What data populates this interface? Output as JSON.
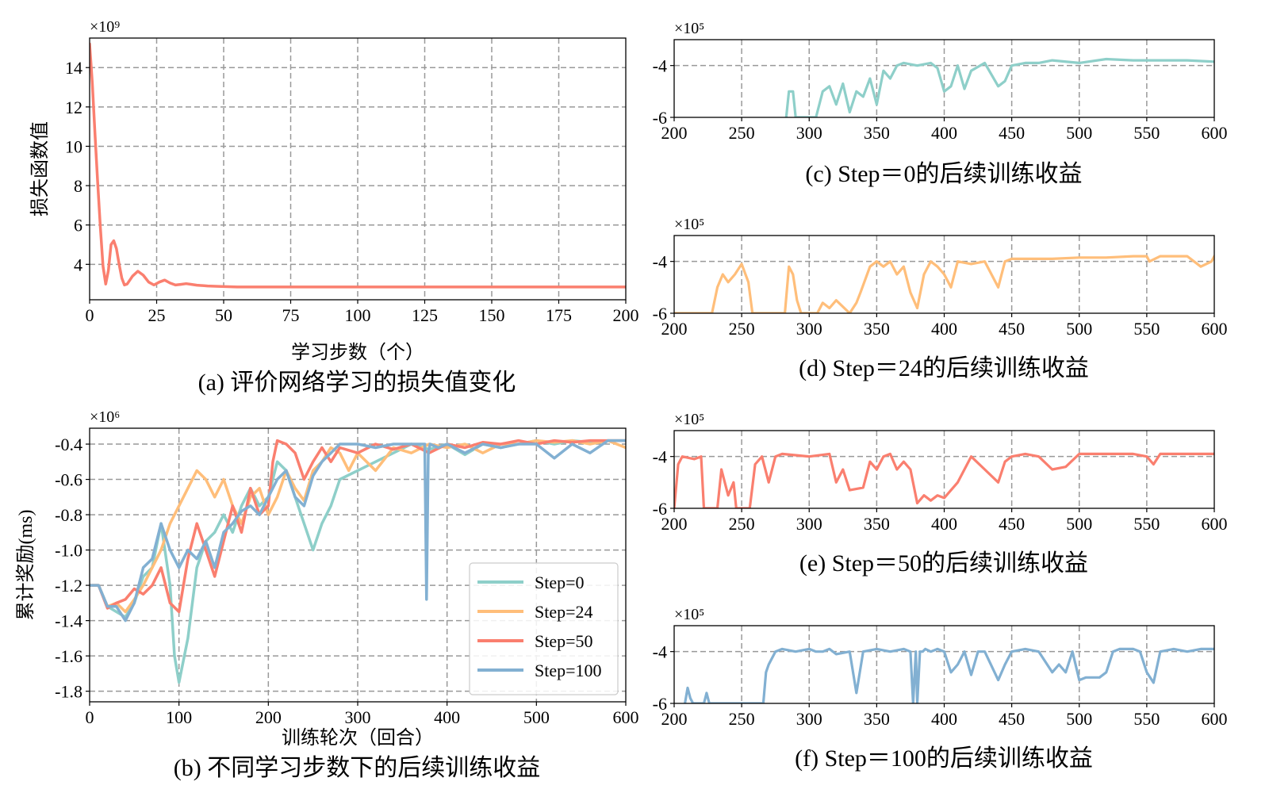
{
  "figure": {
    "panels": [
      {
        "id": "a",
        "caption": "(a)  评价网络学习的损失值变化"
      },
      {
        "id": "b",
        "caption": "(b)  不同学习步数下的后续训练收益"
      },
      {
        "id": "c",
        "caption": "(c)  Step＝0的后续训练收益"
      },
      {
        "id": "d",
        "caption": "(d)  Step＝24的后续训练收益"
      },
      {
        "id": "e",
        "caption": "(e)  Step＝50的后续训练收益"
      },
      {
        "id": "f",
        "caption": "(f)  Step＝100的后续训练收益"
      }
    ]
  },
  "colors": {
    "step0": "#8ecfc9",
    "step24": "#ffbe7a",
    "step50": "#fa7f6f",
    "step100": "#82b0d2",
    "grid": "#999999"
  },
  "chart_data": [
    {
      "id": "a",
      "type": "line",
      "title": "",
      "xlabel": "学习步数（个）",
      "ylabel": "损失函数值",
      "y_multiplier": "×10⁹",
      "xlim": [
        0,
        200
      ],
      "ylim": [
        2.2,
        15.5
      ],
      "xticks": [
        0,
        25,
        50,
        75,
        100,
        125,
        150,
        175,
        200
      ],
      "yticks": [
        4,
        6,
        8,
        10,
        12,
        14
      ],
      "grid": true,
      "series": [
        {
          "color": "#fa7f6f",
          "x": [
            0,
            1,
            2,
            3,
            4,
            5,
            6,
            7,
            8,
            9,
            10,
            11,
            12,
            13,
            14,
            16,
            18,
            20,
            22,
            24,
            26,
            28,
            30,
            32,
            34,
            36,
            38,
            40,
            44,
            48,
            55,
            70,
            100,
            150,
            200
          ],
          "y": [
            15.2,
            13.2,
            10.6,
            8.2,
            5.9,
            3.9,
            3.0,
            3.7,
            5.0,
            5.2,
            4.8,
            4.0,
            3.3,
            2.95,
            3.0,
            3.4,
            3.65,
            3.45,
            3.1,
            2.95,
            3.1,
            3.2,
            3.05,
            2.95,
            2.98,
            3.02,
            2.98,
            2.94,
            2.9,
            2.88,
            2.85,
            2.85,
            2.85,
            2.85,
            2.85
          ]
        }
      ]
    },
    {
      "id": "b",
      "type": "line",
      "title": "",
      "xlabel": "训练轮次（回合）",
      "ylabel": "累计奖励(ms)",
      "y_multiplier": "×10⁶",
      "xlim": [
        0,
        600
      ],
      "ylim": [
        -1.86,
        -0.31
      ],
      "xticks": [
        0,
        100,
        200,
        300,
        400,
        500,
        600
      ],
      "yticks": [
        -0.4,
        -0.6,
        -0.8,
        -1.0,
        -1.2,
        -1.4,
        -1.6,
        -1.8
      ],
      "ytick_labels": [
        "-0.4",
        "-0.6",
        "-0.8",
        "-1.0",
        "-1.2",
        "-1.4",
        "-1.6",
        "-1.8"
      ],
      "grid": true,
      "legend": "lower right",
      "series": [
        {
          "name": "Step=0",
          "color": "#8ecfc9",
          "x": [
            0,
            10,
            20,
            30,
            40,
            50,
            60,
            70,
            80,
            90,
            95,
            100,
            110,
            120,
            130,
            140,
            150,
            160,
            170,
            180,
            190,
            200,
            210,
            220,
            230,
            240,
            250,
            260,
            270,
            280,
            300,
            320,
            340,
            360,
            380,
            400,
            420,
            440,
            460,
            480,
            500,
            520,
            540,
            560,
            580,
            600
          ],
          "y": [
            -1.2,
            -1.2,
            -1.32,
            -1.35,
            -1.38,
            -1.3,
            -1.15,
            -1.1,
            -0.85,
            -1.2,
            -1.6,
            -1.75,
            -1.5,
            -1.1,
            -0.95,
            -0.9,
            -0.8,
            -0.9,
            -0.75,
            -0.65,
            -0.75,
            -0.7,
            -0.5,
            -0.55,
            -0.7,
            -0.85,
            -1.0,
            -0.85,
            -0.75,
            -0.6,
            -0.55,
            -0.5,
            -0.45,
            -0.4,
            -0.43,
            -0.4,
            -0.46,
            -0.4,
            -0.42,
            -0.4,
            -0.38,
            -0.4,
            -0.38,
            -0.39,
            -0.38,
            -0.38
          ]
        },
        {
          "name": "Step=24",
          "color": "#ffbe7a",
          "x": [
            0,
            10,
            20,
            30,
            40,
            50,
            60,
            70,
            80,
            90,
            100,
            110,
            120,
            130,
            140,
            150,
            160,
            170,
            180,
            190,
            200,
            210,
            220,
            230,
            240,
            250,
            260,
            270,
            280,
            290,
            300,
            320,
            340,
            360,
            380,
            400,
            420,
            440,
            460,
            480,
            500,
            520,
            540,
            560,
            580,
            600
          ],
          "y": [
            -1.2,
            -1.2,
            -1.32,
            -1.3,
            -1.35,
            -1.28,
            -1.2,
            -1.1,
            -1.0,
            -0.85,
            -0.75,
            -0.65,
            -0.55,
            -0.6,
            -0.7,
            -0.6,
            -0.75,
            -0.85,
            -0.7,
            -0.65,
            -0.8,
            -0.7,
            -0.55,
            -0.65,
            -0.72,
            -0.55,
            -0.5,
            -0.42,
            -0.45,
            -0.55,
            -0.45,
            -0.55,
            -0.42,
            -0.45,
            -0.4,
            -0.42,
            -0.4,
            -0.45,
            -0.4,
            -0.4,
            -0.38,
            -0.39,
            -0.38,
            -0.4,
            -0.38,
            -0.42
          ]
        },
        {
          "name": "Step=50",
          "color": "#fa7f6f",
          "x": [
            0,
            10,
            20,
            30,
            40,
            50,
            60,
            70,
            80,
            90,
            100,
            110,
            120,
            130,
            140,
            150,
            160,
            170,
            180,
            190,
            200,
            205,
            210,
            220,
            230,
            240,
            250,
            260,
            270,
            280,
            300,
            320,
            340,
            360,
            380,
            400,
            420,
            440,
            460,
            480,
            500,
            520,
            540,
            560,
            580,
            600
          ],
          "y": [
            -1.2,
            -1.2,
            -1.33,
            -1.3,
            -1.28,
            -1.22,
            -1.25,
            -1.2,
            -1.1,
            -1.3,
            -1.35,
            -1.05,
            -0.85,
            -1.0,
            -1.15,
            -0.95,
            -0.75,
            -0.9,
            -0.65,
            -0.8,
            -0.75,
            -0.5,
            -0.38,
            -0.4,
            -0.45,
            -0.6,
            -0.5,
            -0.42,
            -0.5,
            -0.42,
            -0.45,
            -0.4,
            -0.43,
            -0.4,
            -0.45,
            -0.4,
            -0.42,
            -0.39,
            -0.4,
            -0.38,
            -0.4,
            -0.38,
            -0.39,
            -0.38,
            -0.38,
            -0.38
          ]
        },
        {
          "name": "Step=100",
          "color": "#82b0d2",
          "x": [
            0,
            10,
            20,
            30,
            40,
            50,
            60,
            70,
            80,
            90,
            100,
            110,
            120,
            130,
            140,
            150,
            160,
            170,
            180,
            190,
            200,
            210,
            220,
            230,
            240,
            250,
            260,
            270,
            280,
            300,
            320,
            340,
            360,
            375,
            377,
            379,
            381,
            390,
            400,
            420,
            440,
            460,
            480,
            500,
            520,
            540,
            560,
            580,
            600
          ],
          "y": [
            -1.2,
            -1.2,
            -1.32,
            -1.32,
            -1.4,
            -1.3,
            -1.1,
            -1.05,
            -0.85,
            -1.0,
            -1.1,
            -1.0,
            -1.05,
            -0.95,
            -1.1,
            -0.9,
            -0.85,
            -0.78,
            -0.75,
            -0.8,
            -0.7,
            -0.6,
            -0.55,
            -0.7,
            -0.75,
            -0.58,
            -0.5,
            -0.45,
            -0.4,
            -0.4,
            -0.42,
            -0.4,
            -0.4,
            -0.4,
            -1.28,
            -0.45,
            -0.4,
            -0.42,
            -0.4,
            -0.45,
            -0.4,
            -0.42,
            -0.4,
            -0.4,
            -0.48,
            -0.4,
            -0.45,
            -0.38,
            -0.38
          ]
        }
      ]
    },
    {
      "id": "c",
      "type": "line",
      "title": "",
      "y_multiplier": "×10⁵",
      "xlim": [
        200,
        600
      ],
      "ylim": [
        -6.0,
        -3.0
      ],
      "xticks": [
        200,
        250,
        300,
        350,
        400,
        450,
        500,
        550,
        600
      ],
      "yticks": [
        -4,
        -6
      ],
      "grid": true,
      "series": [
        {
          "color": "#8ecfc9",
          "x": [
            283,
            285,
            288,
            290,
            305,
            310,
            315,
            320,
            325,
            330,
            335,
            340,
            345,
            350,
            355,
            360,
            365,
            370,
            380,
            390,
            395,
            400,
            405,
            410,
            415,
            420,
            430,
            440,
            445,
            450,
            460,
            470,
            480,
            500,
            520,
            540,
            560,
            580,
            600
          ],
          "y": [
            -6.0,
            -5.0,
            -5.0,
            -6.0,
            -6.0,
            -5.0,
            -4.8,
            -5.5,
            -4.7,
            -5.8,
            -5.0,
            -5.2,
            -4.5,
            -5.5,
            -4.2,
            -4.5,
            -4.0,
            -3.9,
            -4.0,
            -3.9,
            -4.1,
            -5.0,
            -4.8,
            -4.0,
            -4.9,
            -4.2,
            -3.9,
            -4.8,
            -4.6,
            -4.0,
            -3.9,
            -3.9,
            -3.8,
            -3.9,
            -3.75,
            -3.8,
            -3.8,
            -3.8,
            -3.85
          ]
        }
      ]
    },
    {
      "id": "d",
      "type": "line",
      "title": "",
      "y_multiplier": "×10⁵",
      "xlim": [
        200,
        600
      ],
      "ylim": [
        -6.0,
        -3.0
      ],
      "xticks": [
        200,
        250,
        300,
        350,
        400,
        450,
        500,
        550,
        600
      ],
      "yticks": [
        -4,
        -6
      ],
      "grid": true,
      "series": [
        {
          "color": "#ffbe7a",
          "x": [
            200,
            202,
            228,
            232,
            236,
            240,
            245,
            250,
            255,
            258,
            282,
            285,
            288,
            291,
            294,
            306,
            310,
            315,
            320,
            330,
            335,
            338,
            345,
            350,
            355,
            360,
            365,
            370,
            375,
            380,
            385,
            390,
            395,
            400,
            405,
            410,
            420,
            430,
            435,
            440,
            445,
            450,
            460,
            480,
            500,
            520,
            540,
            550,
            552,
            560,
            580,
            590,
            598,
            600
          ],
          "y": [
            -6.0,
            -6.0,
            -6.0,
            -5.0,
            -4.5,
            -4.8,
            -4.5,
            -4.1,
            -4.8,
            -6.0,
            -6.0,
            -4.2,
            -4.5,
            -5.5,
            -6.0,
            -6.0,
            -5.6,
            -5.8,
            -5.5,
            -6.0,
            -5.6,
            -5.2,
            -4.2,
            -4.0,
            -4.2,
            -4.0,
            -4.5,
            -4.2,
            -5.2,
            -5.8,
            -4.5,
            -4.0,
            -4.2,
            -4.5,
            -5.0,
            -4.0,
            -4.1,
            -4.0,
            -4.5,
            -5.0,
            -4.0,
            -3.9,
            -3.9,
            -3.9,
            -3.85,
            -3.85,
            -3.8,
            -3.8,
            -4.0,
            -3.8,
            -3.8,
            -4.2,
            -4.0,
            -3.8
          ]
        }
      ]
    },
    {
      "id": "e",
      "type": "line",
      "title": "",
      "y_multiplier": "×10⁵",
      "xlim": [
        200,
        600
      ],
      "ylim": [
        -6.0,
        -3.0
      ],
      "xticks": [
        200,
        250,
        300,
        350,
        400,
        450,
        500,
        550,
        600
      ],
      "yticks": [
        -4,
        -6
      ],
      "grid": true,
      "series": [
        {
          "color": "#fa7f6f",
          "x": [
            200,
            203,
            206,
            215,
            220,
            222,
            232,
            235,
            240,
            244,
            246,
            256,
            260,
            265,
            270,
            275,
            280,
            300,
            315,
            320,
            325,
            330,
            340,
            345,
            350,
            355,
            360,
            365,
            370,
            375,
            380,
            385,
            390,
            395,
            400,
            410,
            420,
            430,
            440,
            445,
            450,
            460,
            470,
            480,
            490,
            500,
            520,
            540,
            550,
            555,
            560,
            580,
            600
          ],
          "y": [
            -6.0,
            -4.3,
            -4.0,
            -4.1,
            -4.0,
            -6.0,
            -6.0,
            -4.5,
            -5.5,
            -5.0,
            -6.0,
            -6.0,
            -4.3,
            -4.0,
            -5.0,
            -4.0,
            -3.9,
            -4.0,
            -3.9,
            -5.0,
            -4.5,
            -5.3,
            -5.2,
            -4.2,
            -4.5,
            -4.0,
            -3.9,
            -4.5,
            -4.2,
            -4.5,
            -5.8,
            -5.5,
            -5.7,
            -5.5,
            -5.6,
            -5.0,
            -4.0,
            -4.5,
            -5.0,
            -4.2,
            -4.0,
            -3.9,
            -4.0,
            -4.5,
            -4.4,
            -3.9,
            -3.9,
            -3.9,
            -4.0,
            -4.3,
            -3.9,
            -3.9,
            -3.9
          ]
        }
      ]
    },
    {
      "id": "f",
      "type": "line",
      "title": "",
      "y_multiplier": "×10⁵",
      "xlim": [
        200,
        600
      ],
      "ylim": [
        -6.0,
        -3.0
      ],
      "xticks": [
        200,
        250,
        300,
        350,
        400,
        450,
        500,
        550,
        600
      ],
      "yticks": [
        -4,
        -6
      ],
      "grid": true,
      "series": [
        {
          "color": "#82b0d2",
          "x": [
            208,
            210,
            212,
            214,
            222,
            224,
            226,
            266,
            268,
            270,
            275,
            280,
            290,
            300,
            305,
            310,
            315,
            320,
            330,
            335,
            340,
            350,
            360,
            370,
            375,
            377,
            379,
            380,
            382,
            384,
            386,
            390,
            395,
            400,
            405,
            410,
            415,
            420,
            425,
            430,
            440,
            445,
            450,
            460,
            470,
            480,
            485,
            490,
            495,
            500,
            505,
            510,
            515,
            520,
            525,
            530,
            540,
            545,
            550,
            555,
            560,
            570,
            580,
            590,
            600
          ],
          "y": [
            -6.0,
            -5.4,
            -5.8,
            -6.0,
            -6.0,
            -5.6,
            -6.0,
            -6.0,
            -4.8,
            -4.5,
            -4.0,
            -3.9,
            -4.0,
            -3.9,
            -4.0,
            -4.0,
            -3.9,
            -4.1,
            -4.0,
            -5.6,
            -4.0,
            -3.9,
            -4.0,
            -3.9,
            -4.0,
            -6.0,
            -4.0,
            -6.0,
            -4.0,
            -4.0,
            -3.9,
            -4.0,
            -3.9,
            -4.0,
            -4.8,
            -4.5,
            -4.0,
            -4.9,
            -4.0,
            -4.0,
            -5.1,
            -4.5,
            -4.0,
            -3.9,
            -4.0,
            -4.8,
            -4.5,
            -4.8,
            -4.0,
            -5.1,
            -5.0,
            -5.0,
            -5.0,
            -4.8,
            -4.0,
            -3.9,
            -3.9,
            -4.0,
            -4.8,
            -5.2,
            -4.0,
            -3.9,
            -4.0,
            -3.9,
            -3.9
          ]
        }
      ]
    }
  ]
}
